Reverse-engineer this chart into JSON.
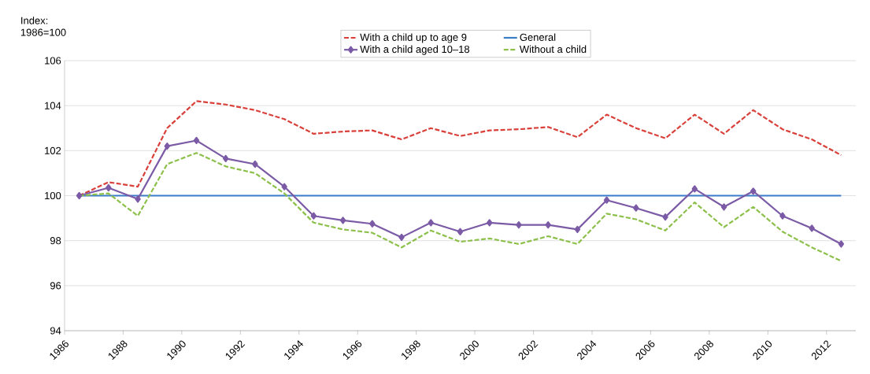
{
  "chart_data": {
    "type": "line",
    "ylabel": "Index: 1986=100",
    "x": [
      1986.5,
      1987.5,
      1988.5,
      1989.5,
      1990.5,
      1991.5,
      1992.5,
      1993.5,
      1994.5,
      1995.5,
      1996.5,
      1997.5,
      1998.5,
      1999.5,
      2000.5,
      2001.5,
      2002.5,
      2003.5,
      2004.5,
      2005.5,
      2006.5,
      2007.5,
      2008.5,
      2009.5,
      2010.5,
      2011.5,
      2012.5
    ],
    "series": [
      {
        "name": "With a child up to age 9",
        "color": "#d9403a",
        "line_style": "dashed",
        "marker": "none",
        "values": [
          100,
          100.6,
          100.4,
          103.0,
          104.2,
          104.05,
          103.8,
          103.4,
          102.75,
          102.85,
          102.9,
          102.5,
          103.0,
          102.65,
          102.9,
          102.95,
          103.05,
          102.6,
          103.6,
          103.0,
          102.55,
          103.6,
          102.75,
          103.8,
          102.95,
          102.5,
          101.8
        ]
      },
      {
        "name": "General",
        "color": "#3a7cc8",
        "line_style": "solid",
        "marker": "none",
        "values": [
          100,
          100,
          100,
          100,
          100,
          100,
          100,
          100,
          100,
          100,
          100,
          100,
          100,
          100,
          100,
          100,
          100,
          100,
          100,
          100,
          100,
          100,
          100,
          100,
          100,
          100,
          100
        ]
      },
      {
        "name": "With a child aged 10–18",
        "color": "#7b5aa6",
        "line_style": "solid",
        "marker": "diamond",
        "values": [
          100,
          100.35,
          99.85,
          102.2,
          102.45,
          101.65,
          101.4,
          100.4,
          99.1,
          98.9,
          98.75,
          98.15,
          98.8,
          98.4,
          98.8,
          98.7,
          98.7,
          98.5,
          99.8,
          99.45,
          99.05,
          100.3,
          99.5,
          100.2,
          99.1,
          98.55,
          97.85
        ]
      },
      {
        "name": "Without a child",
        "color": "#8cc04a",
        "line_style": "dashed",
        "marker": "none",
        "values": [
          100,
          100.1,
          99.1,
          101.4,
          101.9,
          101.3,
          101.0,
          100.1,
          98.8,
          98.5,
          98.35,
          97.7,
          98.45,
          97.95,
          98.1,
          97.85,
          98.2,
          97.85,
          99.2,
          98.95,
          98.45,
          99.7,
          98.6,
          99.5,
          98.4,
          97.7,
          97.1
        ]
      }
    ],
    "xlim": [
      1986,
      2013
    ],
    "xticks": [
      1986,
      1988,
      1990,
      1992,
      1994,
      1996,
      1998,
      2000,
      2002,
      2004,
      2006,
      2008,
      2010,
      2012
    ],
    "ylim": [
      94,
      106
    ],
    "yticks": [
      94,
      96,
      98,
      100,
      102,
      104,
      106
    ],
    "grid": "y",
    "legend": "top"
  }
}
